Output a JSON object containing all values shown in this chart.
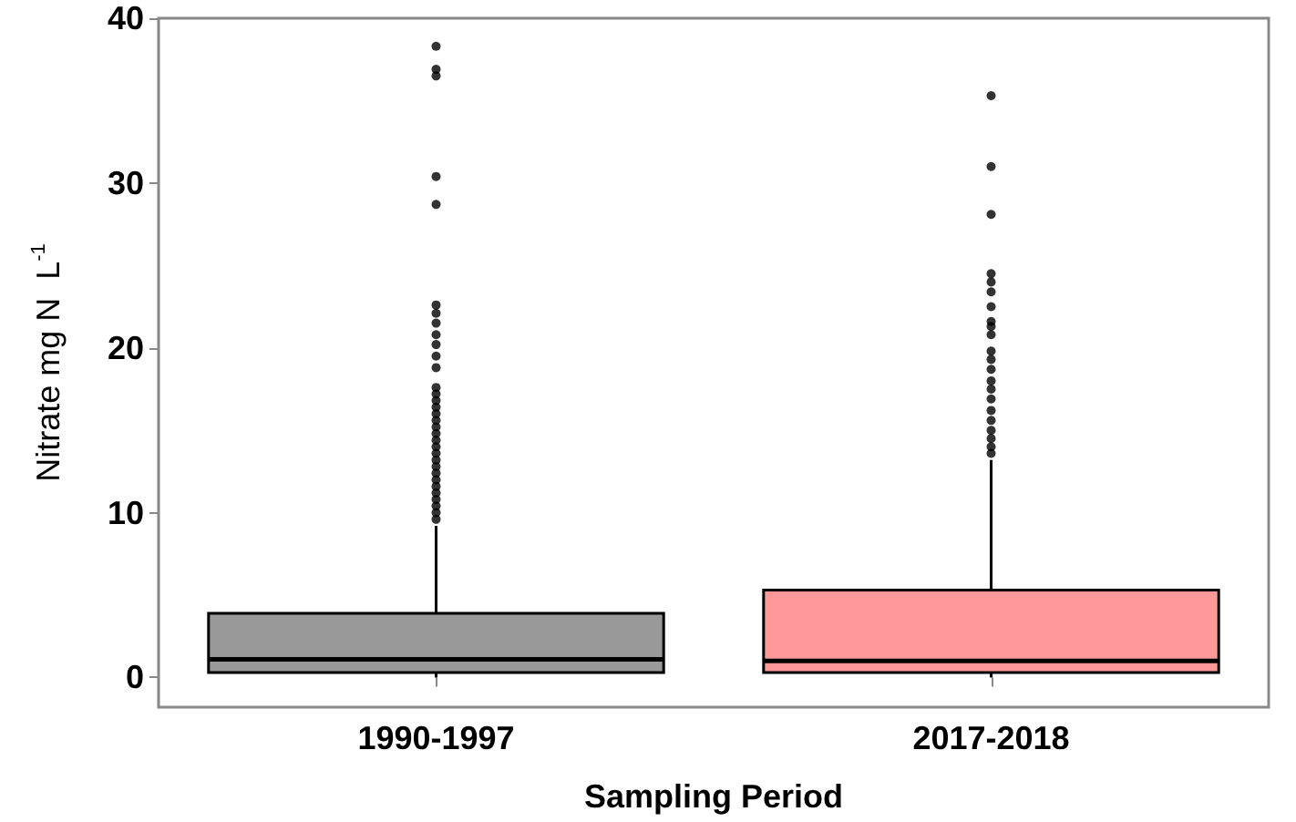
{
  "chart_data": {
    "type": "box",
    "xlabel": "Sampling Period",
    "ylabel": "Nitrate mg N  L$^{-1}$",
    "categories": [
      "1990-1997",
      "2017-2018"
    ],
    "colors": [
      "#999999",
      "#ff9999"
    ],
    "boxes": [
      {
        "low": 0,
        "q1": 0.3,
        "median": 1.1,
        "q3": 3.9,
        "high": 9.2,
        "outliers": [
          38.3,
          36.9,
          36.5,
          30.4,
          28.7,
          22.6,
          22.1,
          21.5,
          20.8,
          20.2,
          19.5,
          18.8,
          17.6,
          17.2,
          16.8,
          16.4,
          16.0,
          15.6,
          15.2,
          14.8,
          14.4,
          14.0,
          13.6,
          13.2,
          12.8,
          12.4,
          12.0,
          11.6,
          11.2,
          10.8,
          10.4,
          10.0,
          9.6
        ]
      },
      {
        "low": 0,
        "q1": 0.3,
        "median": 1.0,
        "q3": 5.3,
        "high": 13.2,
        "outliers": [
          35.3,
          31.0,
          28.1,
          24.5,
          24.0,
          23.4,
          22.5,
          21.6,
          21.3,
          20.8,
          19.8,
          19.3,
          18.7,
          18.0,
          17.5,
          16.9,
          16.2,
          15.6,
          15.0,
          14.5,
          14.0,
          13.6
        ]
      }
    ],
    "ylim": [
      -1.8,
      40
    ],
    "yticks": [
      0,
      10,
      20,
      30,
      40
    ],
    "grid": false
  }
}
